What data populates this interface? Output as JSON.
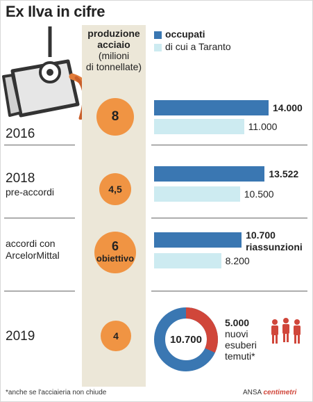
{
  "title": "Ex Ilva in cifre",
  "production_header": {
    "line1": "produzione",
    "line2": "acciaio",
    "line3": "(milioni",
    "line4": "di tonnellate)"
  },
  "legend": [
    {
      "label": "occupati",
      "color": "#3a77b2"
    },
    {
      "label": "di cui a Taranto",
      "color": "#cdebf1"
    }
  ],
  "circle_color": "#f09443",
  "ring_colors": {
    "blue": "#3a77b2",
    "red": "#d0463a"
  },
  "icons": [
    "steel-ladle-icon",
    "workers-icon"
  ],
  "chart_data": {
    "type": "bar",
    "title": "Ex Ilva in cifre",
    "categories": [
      "2016",
      "2018 pre-accordi",
      "accordi con ArcelorMittal",
      "2019"
    ],
    "production": [
      8,
      4.5,
      6,
      4
    ],
    "series": [
      {
        "name": "occupati",
        "values": [
          14000,
          13522,
          10700,
          null
        ]
      },
      {
        "name": "di cui a Taranto",
        "values": [
          11000,
          10500,
          8200,
          null
        ]
      }
    ],
    "xlim": [
      0,
      14000
    ]
  },
  "rows": [
    {
      "year": "2016",
      "sub": "",
      "sub2": "",
      "production": "8",
      "occupati": "14.000",
      "occupati_note": "",
      "taranto": "11.000"
    },
    {
      "year": "2018",
      "sub": "pre-accordi",
      "sub2": "",
      "production": "4,5",
      "occupati": "13.522",
      "occupati_note": "",
      "taranto": "10.500"
    },
    {
      "year": "",
      "sub": "accordi con",
      "sub2": "ArcelorMittal",
      "production": "6",
      "production_note": "obiettivo",
      "occupati": "10.700",
      "occupati_note": "riassunzioni",
      "taranto": "8.200"
    },
    {
      "year": "2019",
      "sub": "",
      "sub2": "",
      "production": "4"
    }
  ],
  "ring": {
    "center_label": "10.700",
    "layoffs_value": "5.000",
    "layoffs_l1": "nuovi",
    "layoffs_l2": "esuberi",
    "layoffs_l3": "temuti*",
    "fraction_red": 0.318
  },
  "footnote": "*anche se l'acciaieria non chiude",
  "source": {
    "ansa": "ANSA",
    "centimetri": "centimetri"
  }
}
